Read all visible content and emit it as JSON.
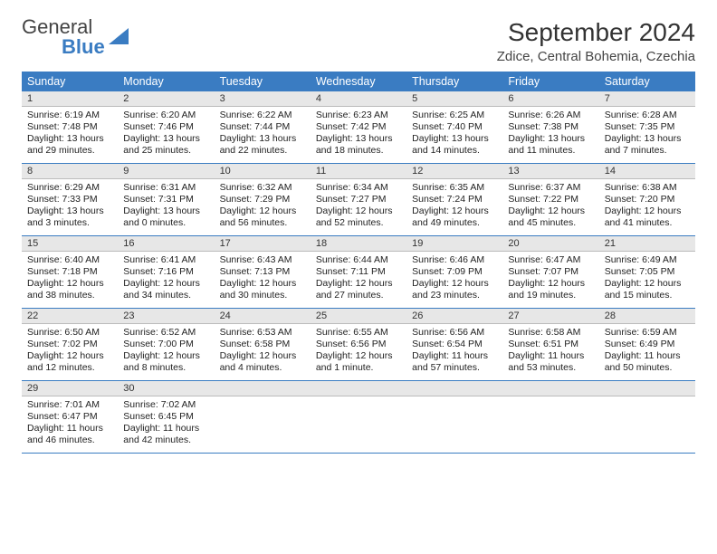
{
  "brand": {
    "name1": "General",
    "name2": "Blue"
  },
  "title": "September 2024",
  "location": "Zdice, Central Bohemia, Czechia",
  "colors": {
    "header_bg": "#3a7cc2",
    "header_fg": "#ffffff",
    "daynum_bg": "#e7e7e7",
    "rule": "#3a7cc2"
  },
  "day_headers": [
    "Sunday",
    "Monday",
    "Tuesday",
    "Wednesday",
    "Thursday",
    "Friday",
    "Saturday"
  ],
  "weeks": [
    [
      {
        "n": "1",
        "sr": "Sunrise: 6:19 AM",
        "ss": "Sunset: 7:48 PM",
        "dl": "Daylight: 13 hours and 29 minutes."
      },
      {
        "n": "2",
        "sr": "Sunrise: 6:20 AM",
        "ss": "Sunset: 7:46 PM",
        "dl": "Daylight: 13 hours and 25 minutes."
      },
      {
        "n": "3",
        "sr": "Sunrise: 6:22 AM",
        "ss": "Sunset: 7:44 PM",
        "dl": "Daylight: 13 hours and 22 minutes."
      },
      {
        "n": "4",
        "sr": "Sunrise: 6:23 AM",
        "ss": "Sunset: 7:42 PM",
        "dl": "Daylight: 13 hours and 18 minutes."
      },
      {
        "n": "5",
        "sr": "Sunrise: 6:25 AM",
        "ss": "Sunset: 7:40 PM",
        "dl": "Daylight: 13 hours and 14 minutes."
      },
      {
        "n": "6",
        "sr": "Sunrise: 6:26 AM",
        "ss": "Sunset: 7:38 PM",
        "dl": "Daylight: 13 hours and 11 minutes."
      },
      {
        "n": "7",
        "sr": "Sunrise: 6:28 AM",
        "ss": "Sunset: 7:35 PM",
        "dl": "Daylight: 13 hours and 7 minutes."
      }
    ],
    [
      {
        "n": "8",
        "sr": "Sunrise: 6:29 AM",
        "ss": "Sunset: 7:33 PM",
        "dl": "Daylight: 13 hours and 3 minutes."
      },
      {
        "n": "9",
        "sr": "Sunrise: 6:31 AM",
        "ss": "Sunset: 7:31 PM",
        "dl": "Daylight: 13 hours and 0 minutes."
      },
      {
        "n": "10",
        "sr": "Sunrise: 6:32 AM",
        "ss": "Sunset: 7:29 PM",
        "dl": "Daylight: 12 hours and 56 minutes."
      },
      {
        "n": "11",
        "sr": "Sunrise: 6:34 AM",
        "ss": "Sunset: 7:27 PM",
        "dl": "Daylight: 12 hours and 52 minutes."
      },
      {
        "n": "12",
        "sr": "Sunrise: 6:35 AM",
        "ss": "Sunset: 7:24 PM",
        "dl": "Daylight: 12 hours and 49 minutes."
      },
      {
        "n": "13",
        "sr": "Sunrise: 6:37 AM",
        "ss": "Sunset: 7:22 PM",
        "dl": "Daylight: 12 hours and 45 minutes."
      },
      {
        "n": "14",
        "sr": "Sunrise: 6:38 AM",
        "ss": "Sunset: 7:20 PM",
        "dl": "Daylight: 12 hours and 41 minutes."
      }
    ],
    [
      {
        "n": "15",
        "sr": "Sunrise: 6:40 AM",
        "ss": "Sunset: 7:18 PM",
        "dl": "Daylight: 12 hours and 38 minutes."
      },
      {
        "n": "16",
        "sr": "Sunrise: 6:41 AM",
        "ss": "Sunset: 7:16 PM",
        "dl": "Daylight: 12 hours and 34 minutes."
      },
      {
        "n": "17",
        "sr": "Sunrise: 6:43 AM",
        "ss": "Sunset: 7:13 PM",
        "dl": "Daylight: 12 hours and 30 minutes."
      },
      {
        "n": "18",
        "sr": "Sunrise: 6:44 AM",
        "ss": "Sunset: 7:11 PM",
        "dl": "Daylight: 12 hours and 27 minutes."
      },
      {
        "n": "19",
        "sr": "Sunrise: 6:46 AM",
        "ss": "Sunset: 7:09 PM",
        "dl": "Daylight: 12 hours and 23 minutes."
      },
      {
        "n": "20",
        "sr": "Sunrise: 6:47 AM",
        "ss": "Sunset: 7:07 PM",
        "dl": "Daylight: 12 hours and 19 minutes."
      },
      {
        "n": "21",
        "sr": "Sunrise: 6:49 AM",
        "ss": "Sunset: 7:05 PM",
        "dl": "Daylight: 12 hours and 15 minutes."
      }
    ],
    [
      {
        "n": "22",
        "sr": "Sunrise: 6:50 AM",
        "ss": "Sunset: 7:02 PM",
        "dl": "Daylight: 12 hours and 12 minutes."
      },
      {
        "n": "23",
        "sr": "Sunrise: 6:52 AM",
        "ss": "Sunset: 7:00 PM",
        "dl": "Daylight: 12 hours and 8 minutes."
      },
      {
        "n": "24",
        "sr": "Sunrise: 6:53 AM",
        "ss": "Sunset: 6:58 PM",
        "dl": "Daylight: 12 hours and 4 minutes."
      },
      {
        "n": "25",
        "sr": "Sunrise: 6:55 AM",
        "ss": "Sunset: 6:56 PM",
        "dl": "Daylight: 12 hours and 1 minute."
      },
      {
        "n": "26",
        "sr": "Sunrise: 6:56 AM",
        "ss": "Sunset: 6:54 PM",
        "dl": "Daylight: 11 hours and 57 minutes."
      },
      {
        "n": "27",
        "sr": "Sunrise: 6:58 AM",
        "ss": "Sunset: 6:51 PM",
        "dl": "Daylight: 11 hours and 53 minutes."
      },
      {
        "n": "28",
        "sr": "Sunrise: 6:59 AM",
        "ss": "Sunset: 6:49 PM",
        "dl": "Daylight: 11 hours and 50 minutes."
      }
    ],
    [
      {
        "n": "29",
        "sr": "Sunrise: 7:01 AM",
        "ss": "Sunset: 6:47 PM",
        "dl": "Daylight: 11 hours and 46 minutes."
      },
      {
        "n": "30",
        "sr": "Sunrise: 7:02 AM",
        "ss": "Sunset: 6:45 PM",
        "dl": "Daylight: 11 hours and 42 minutes."
      },
      {
        "n": "",
        "sr": "",
        "ss": "",
        "dl": ""
      },
      {
        "n": "",
        "sr": "",
        "ss": "",
        "dl": ""
      },
      {
        "n": "",
        "sr": "",
        "ss": "",
        "dl": ""
      },
      {
        "n": "",
        "sr": "",
        "ss": "",
        "dl": ""
      },
      {
        "n": "",
        "sr": "",
        "ss": "",
        "dl": ""
      }
    ]
  ]
}
